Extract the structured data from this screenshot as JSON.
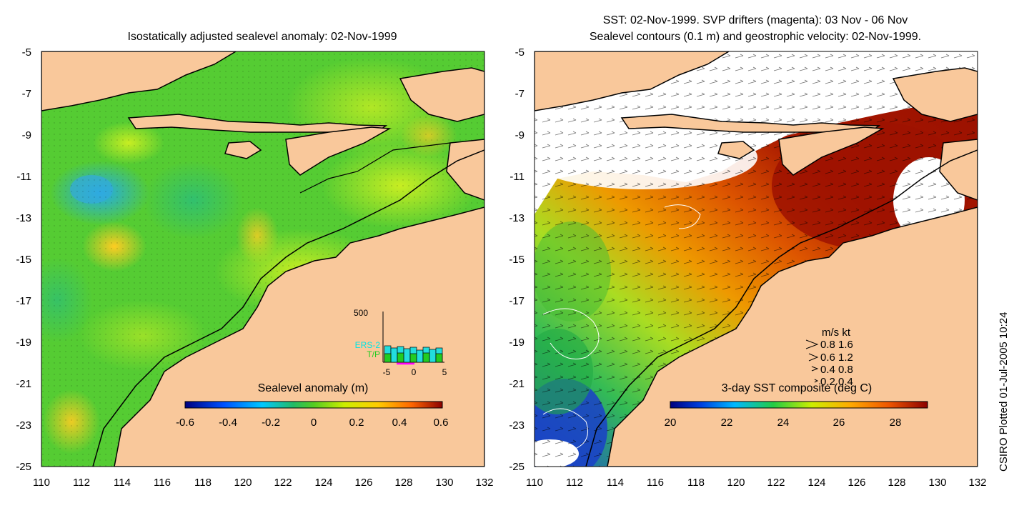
{
  "left_panel": {
    "title": "Isostatically adjusted sealevel anomaly: 02-Nov-1999",
    "colorbar_label": "Sealevel anomaly (m)",
    "colorbar_ticks": [
      "-0.6",
      "-0.4",
      "-0.2",
      "0",
      "0.2",
      "0.4",
      "0.6"
    ],
    "inset": {
      "ymax_label": "500",
      "series": [
        "ERS-2",
        "T/P"
      ],
      "x_ticks": [
        "-5",
        "0",
        "5"
      ],
      "series_colors": {
        "ERS-2": "#00e5e5",
        "T/P": "#22cc22"
      }
    }
  },
  "right_panel": {
    "title_line1": "SST: 02-Nov-1999. SVP drifters (magenta): 03 Nov - 06 Nov",
    "title_line2": "Sealevel contours (0.1 m) and geostrophic velocity: 02-Nov-1999.",
    "colorbar_label": "3-day SST composite (deg C)",
    "colorbar_ticks": [
      "20",
      "22",
      "24",
      "26",
      "28"
    ],
    "velocity_legend": {
      "header": "m/s  kt",
      "rows": [
        "0.8  1.6",
        "0.6  1.2",
        "0.4  0.8",
        "0.2  0.4"
      ]
    }
  },
  "axes": {
    "y_ticks": [
      "-5",
      "-7",
      "-9",
      "-11",
      "-13",
      "-15",
      "-17",
      "-19",
      "-21",
      "-23",
      "-25"
    ],
    "x_ticks": [
      "110",
      "112",
      "114",
      "116",
      "118",
      "120",
      "122",
      "124",
      "126",
      "128",
      "130",
      "132"
    ]
  },
  "credit": "CSIRO Plotted 01-Jul-2005 10:24",
  "colors": {
    "land": "#f9c89b",
    "ocean_green": "#55cc33",
    "cold": "#1a2f9a",
    "warm": "#9e1200"
  }
}
